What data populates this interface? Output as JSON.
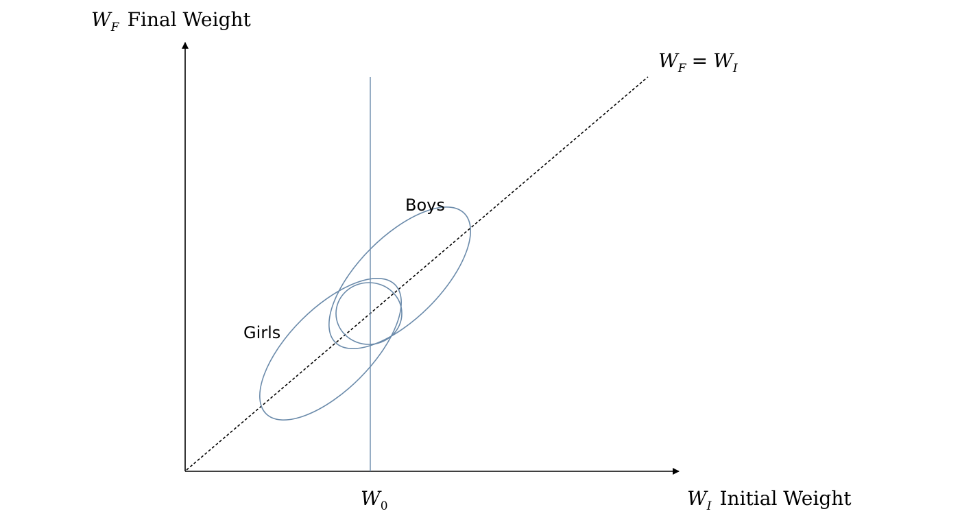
{
  "colors": {
    "axis": "#000000",
    "ellipse": "#6a8aaa",
    "vertical_line": "#6a8aaa",
    "diagonal": "#000000"
  },
  "y_axis_label": {
    "var_main": "W",
    "var_sub": "F",
    "text": "Final Weight"
  },
  "x_axis_label": {
    "var_main": "W",
    "var_sub": "I",
    "text": "Initial Weight"
  },
  "x_marker": {
    "var_main": "W",
    "var_sub": "0"
  },
  "diagonal_label": {
    "lhs_main": "W",
    "lhs_sub": "F",
    "equals": "=",
    "rhs_main": "W",
    "rhs_sub": "I"
  },
  "groups": {
    "boys": "Boys",
    "girls": "Girls"
  }
}
